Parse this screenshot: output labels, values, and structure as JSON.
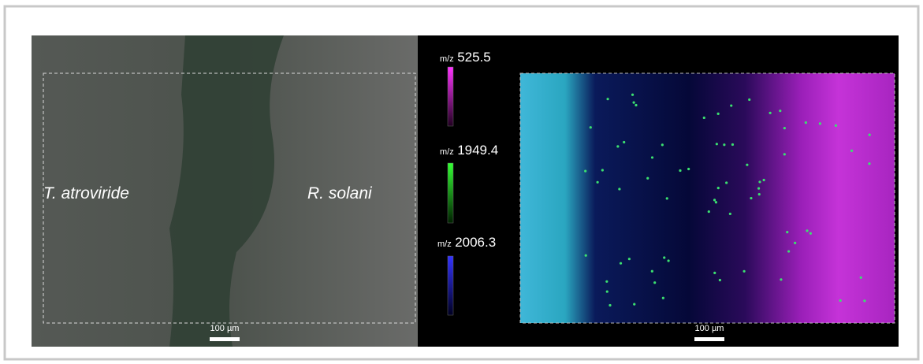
{
  "left_panel": {
    "labels": [
      "T. atroviride",
      "R. solani"
    ],
    "scale_bar": "100 µm"
  },
  "right_panel": {
    "channels": [
      {
        "prefix": "m/z",
        "value": "525.5"
      },
      {
        "prefix": "m/z",
        "value": "1949.4"
      },
      {
        "prefix": "m/z",
        "value": "2006.3"
      }
    ],
    "scale_bar": "100 µm"
  }
}
